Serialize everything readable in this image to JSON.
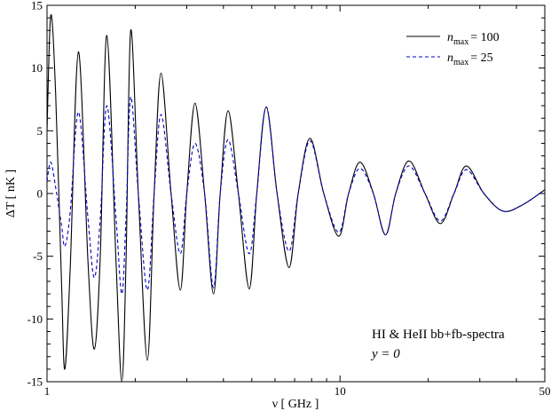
{
  "chart_data": {
    "type": "line",
    "xscale": "log",
    "xlim": [
      1,
      50
    ],
    "ylim": [
      -15,
      15
    ],
    "grid": false,
    "legend_position": "top-right",
    "xlabel": "ν [ GHz ]",
    "ylabel": "ΔT [ nK ]",
    "x_ticks": [
      {
        "value": 1,
        "label": "1"
      },
      {
        "value": 10,
        "label": "10"
      },
      {
        "value": 50,
        "label": "50"
      }
    ],
    "y_ticks": [
      {
        "value": -15,
        "label": "-15"
      },
      {
        "value": -10,
        "label": "-10"
      },
      {
        "value": -5,
        "label": "-5"
      },
      {
        "value": 0,
        "label": "0"
      },
      {
        "value": 5,
        "label": "5"
      },
      {
        "value": 10,
        "label": "10"
      },
      {
        "value": 15,
        "label": "15"
      }
    ],
    "annotations": [
      "HI & HeII bb+fb-spectra",
      "y = 0"
    ],
    "series": [
      {
        "name": "n_max = 100",
        "legend_var": "n",
        "legend_sub": "max",
        "legend_value": "= 100",
        "color": "#000000",
        "dash": "solid",
        "points": [
          [
            1.0,
            5.0
          ],
          [
            1.03,
            14.2
          ],
          [
            1.07,
            8.0
          ],
          [
            1.12,
            -7.0
          ],
          [
            1.15,
            -14.0
          ],
          [
            1.2,
            -6.0
          ],
          [
            1.28,
            11.3
          ],
          [
            1.38,
            -5.5
          ],
          [
            1.45,
            -12.4
          ],
          [
            1.52,
            -5.0
          ],
          [
            1.6,
            12.6
          ],
          [
            1.72,
            -5.5
          ],
          [
            1.8,
            -15.0
          ],
          [
            1.86,
            -5.5
          ],
          [
            1.93,
            13.0
          ],
          [
            2.05,
            0.0
          ],
          [
            2.2,
            -13.3
          ],
          [
            2.32,
            0.0
          ],
          [
            2.45,
            9.6
          ],
          [
            2.65,
            0.0
          ],
          [
            2.85,
            -7.7
          ],
          [
            3.0,
            0.0
          ],
          [
            3.2,
            7.2
          ],
          [
            3.45,
            0.0
          ],
          [
            3.7,
            -8.0
          ],
          [
            3.9,
            0.0
          ],
          [
            4.15,
            6.6
          ],
          [
            4.5,
            0.0
          ],
          [
            4.9,
            -7.6
          ],
          [
            5.2,
            0.0
          ],
          [
            5.6,
            6.9
          ],
          [
            6.1,
            0.0
          ],
          [
            6.7,
            -5.9
          ],
          [
            7.2,
            0.0
          ],
          [
            7.9,
            4.4
          ],
          [
            8.8,
            0.0
          ],
          [
            9.9,
            -3.4
          ],
          [
            10.7,
            0.0
          ],
          [
            11.7,
            2.5
          ],
          [
            13.0,
            0.0
          ],
          [
            14.3,
            -3.3
          ],
          [
            15.5,
            0.0
          ],
          [
            17.2,
            2.6
          ],
          [
            19.5,
            0.0
          ],
          [
            22.0,
            -2.4
          ],
          [
            24.5,
            0.0
          ],
          [
            27.0,
            2.2
          ],
          [
            31.0,
            0.0
          ],
          [
            36.0,
            -1.4
          ],
          [
            42.0,
            -0.9
          ],
          [
            50.0,
            0.3
          ]
        ]
      },
      {
        "name": "n_max = 25",
        "legend_var": "n",
        "legend_sub": "max",
        "legend_value": "= 25",
        "color": "#0000cc",
        "dash": "dashed",
        "points": [
          [
            1.0,
            1.0
          ],
          [
            1.03,
            2.5
          ],
          [
            1.07,
            0.5
          ],
          [
            1.12,
            -2.5
          ],
          [
            1.15,
            -4.2
          ],
          [
            1.2,
            -1.5
          ],
          [
            1.28,
            6.5
          ],
          [
            1.38,
            -2.0
          ],
          [
            1.45,
            -6.7
          ],
          [
            1.52,
            -2.0
          ],
          [
            1.6,
            7.0
          ],
          [
            1.72,
            -2.0
          ],
          [
            1.8,
            -8.0
          ],
          [
            1.86,
            -2.0
          ],
          [
            1.93,
            7.7
          ],
          [
            2.05,
            0.0
          ],
          [
            2.2,
            -7.7
          ],
          [
            2.32,
            0.0
          ],
          [
            2.45,
            6.3
          ],
          [
            2.65,
            0.0
          ],
          [
            2.85,
            -4.8
          ],
          [
            3.0,
            0.0
          ],
          [
            3.2,
            4.0
          ],
          [
            3.45,
            0.0
          ],
          [
            3.7,
            -7.5
          ],
          [
            3.9,
            0.0
          ],
          [
            4.15,
            4.3
          ],
          [
            4.5,
            0.0
          ],
          [
            4.9,
            -4.8
          ],
          [
            5.2,
            0.0
          ],
          [
            5.6,
            6.9
          ],
          [
            6.1,
            0.0
          ],
          [
            6.7,
            -4.6
          ],
          [
            7.2,
            0.0
          ],
          [
            7.9,
            4.2
          ],
          [
            8.8,
            0.0
          ],
          [
            9.9,
            -3.1
          ],
          [
            10.7,
            0.0
          ],
          [
            11.7,
            2.0
          ],
          [
            13.0,
            0.0
          ],
          [
            14.3,
            -3.3
          ],
          [
            15.5,
            0.0
          ],
          [
            17.2,
            2.2
          ],
          [
            19.5,
            0.0
          ],
          [
            22.0,
            -2.2
          ],
          [
            24.5,
            0.0
          ],
          [
            27.0,
            1.9
          ],
          [
            31.0,
            0.0
          ],
          [
            36.0,
            -1.4
          ],
          [
            42.0,
            -0.9
          ],
          [
            50.0,
            0.3
          ]
        ]
      }
    ]
  }
}
